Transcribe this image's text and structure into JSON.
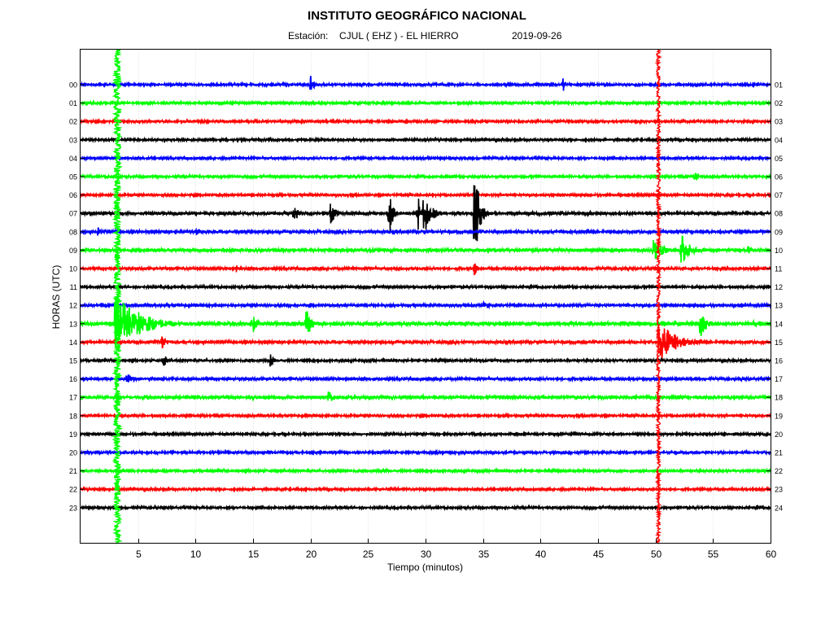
{
  "header": {
    "title": "INSTITUTO GEOGRÁFICO NACIONAL",
    "station_label": "Estación:",
    "station_value": "CJUL ( EHZ ) - EL HIERRO",
    "date": "2019-09-26"
  },
  "colors": {
    "cycle": [
      "#0000ff",
      "#00ff00",
      "#ff0000",
      "#000000"
    ],
    "background": "#ffffff",
    "grid": "#e0e0e0"
  },
  "chart_data": {
    "type": "line",
    "subtype": "helicorder",
    "xlabel": "Tiempo (minutos)",
    "ylabel": "HORAS (UTC)",
    "xlim": [
      0,
      60
    ],
    "x_ticks": [
      5,
      10,
      15,
      20,
      25,
      30,
      35,
      40,
      45,
      50,
      55,
      60
    ],
    "grid": "vertical",
    "left_tick_labels": [
      "00",
      "01",
      "02",
      "03",
      "04",
      "05",
      "06",
      "07",
      "08",
      "09",
      "10",
      "11",
      "12",
      "13",
      "14",
      "15",
      "16",
      "17",
      "18",
      "19",
      "20",
      "21",
      "22",
      "23"
    ],
    "right_tick_labels": [
      "01",
      "02",
      "03",
      "04",
      "05",
      "06",
      "07",
      "08",
      "09",
      "10",
      "11",
      "12",
      "13",
      "14",
      "15",
      "16",
      "17",
      "18",
      "19",
      "20",
      "21",
      "22",
      "23",
      "24"
    ],
    "traces": [
      {
        "hour": "00",
        "color": "blue",
        "noise": 0.35,
        "events": [
          {
            "t": 20.0,
            "amp": 28,
            "dur": 0.5
          },
          {
            "t": 41.9,
            "amp": 14,
            "dur": 0.4
          }
        ]
      },
      {
        "hour": "01",
        "color": "green",
        "noise": 0.35,
        "events": []
      },
      {
        "hour": "02",
        "color": "red",
        "noise": 0.35,
        "events": []
      },
      {
        "hour": "03",
        "color": "black",
        "noise": 0.35,
        "events": []
      },
      {
        "hour": "04",
        "color": "blue",
        "noise": 0.35,
        "events": []
      },
      {
        "hour": "05",
        "color": "green",
        "noise": 0.35,
        "events": [
          {
            "t": 53.4,
            "amp": 14,
            "dur": 0.5
          }
        ]
      },
      {
        "hour": "06",
        "color": "red",
        "noise": 0.35,
        "events": []
      },
      {
        "hour": "07",
        "color": "black",
        "noise": 0.45,
        "events": [
          {
            "t": 18.5,
            "amp": 9,
            "dur": 1.8
          },
          {
            "t": 21.7,
            "amp": 14,
            "dur": 1.4
          },
          {
            "t": 26.8,
            "amp": 32,
            "dur": 0.8
          },
          {
            "t": 29.3,
            "amp": 30,
            "dur": 0.6
          },
          {
            "t": 29.8,
            "amp": 30,
            "dur": 1.8
          },
          {
            "t": 34.2,
            "amp": 70,
            "dur": 1.2
          },
          {
            "t": 44.0,
            "amp": 4,
            "dur": 1.5
          }
        ]
      },
      {
        "hour": "08",
        "color": "blue",
        "noise": 0.45,
        "events": [
          {
            "t": 1.5,
            "amp": 6,
            "dur": 2.0
          },
          {
            "t": 10.0,
            "amp": 5,
            "dur": 1.5
          }
        ]
      },
      {
        "hour": "09",
        "color": "green",
        "noise": 0.5,
        "events": [
          {
            "t": 49.8,
            "amp": 14,
            "dur": 2.5
          },
          {
            "t": 52.2,
            "amp": 20,
            "dur": 2.5
          },
          {
            "t": 58.0,
            "amp": 6,
            "dur": 2.0
          }
        ]
      },
      {
        "hour": "10",
        "color": "red",
        "noise": 0.4,
        "events": [
          {
            "t": 13.5,
            "amp": 5,
            "dur": 1.5
          },
          {
            "t": 34.2,
            "amp": 10,
            "dur": 0.8
          }
        ]
      },
      {
        "hour": "11",
        "color": "black",
        "noise": 0.35,
        "events": []
      },
      {
        "hour": "12",
        "color": "blue",
        "noise": 0.4,
        "events": [
          {
            "t": 35.0,
            "amp": 7,
            "dur": 1.5
          }
        ]
      },
      {
        "hour": "13",
        "color": "green",
        "noise": 0.6,
        "events": [
          {
            "t": 3.0,
            "amp": 40,
            "dur": 6.0
          },
          {
            "t": 14.8,
            "amp": 20,
            "dur": 1.2
          },
          {
            "t": 19.6,
            "amp": 18,
            "dur": 1.4
          },
          {
            "t": 53.8,
            "amp": 22,
            "dur": 1.6
          },
          {
            "t": 58.5,
            "amp": 6,
            "dur": 1.5
          }
        ]
      },
      {
        "hour": "14",
        "color": "red",
        "noise": 0.45,
        "events": [
          {
            "t": 7.0,
            "amp": 10,
            "dur": 1.5
          },
          {
            "t": 50.3,
            "amp": 28,
            "dur": 4.0
          }
        ]
      },
      {
        "hour": "15",
        "color": "black",
        "noise": 0.35,
        "events": [
          {
            "t": 7.2,
            "amp": 12,
            "dur": 0.8
          },
          {
            "t": 16.5,
            "amp": 10,
            "dur": 0.8
          }
        ]
      },
      {
        "hour": "16",
        "color": "blue",
        "noise": 0.4,
        "events": [
          {
            "t": 4.0,
            "amp": 7,
            "dur": 2.0
          }
        ]
      },
      {
        "hour": "17",
        "color": "green",
        "noise": 0.45,
        "events": [
          {
            "t": 15.0,
            "amp": 5,
            "dur": 2.0
          },
          {
            "t": 21.5,
            "amp": 10,
            "dur": 1.2
          },
          {
            "t": 29.8,
            "amp": 4,
            "dur": 0.6
          }
        ]
      },
      {
        "hour": "18",
        "color": "red",
        "noise": 0.35,
        "events": []
      },
      {
        "hour": "19",
        "color": "black",
        "noise": 0.35,
        "events": []
      },
      {
        "hour": "20",
        "color": "blue",
        "noise": 0.35,
        "events": []
      },
      {
        "hour": "21",
        "color": "green",
        "noise": 0.35,
        "events": []
      },
      {
        "hour": "22",
        "color": "red",
        "noise": 0.35,
        "events": []
      },
      {
        "hour": "23",
        "color": "black",
        "noise": 0.35,
        "events": [
          {
            "t": 9.3,
            "amp": 3,
            "dur": 0.5
          }
        ]
      }
    ],
    "large_event": {
      "t_start": 2.9,
      "t_end": 3.5,
      "color": "green"
    },
    "secondary_spike": {
      "t_start": 50.1,
      "t_end": 50.4,
      "color": "red"
    }
  }
}
